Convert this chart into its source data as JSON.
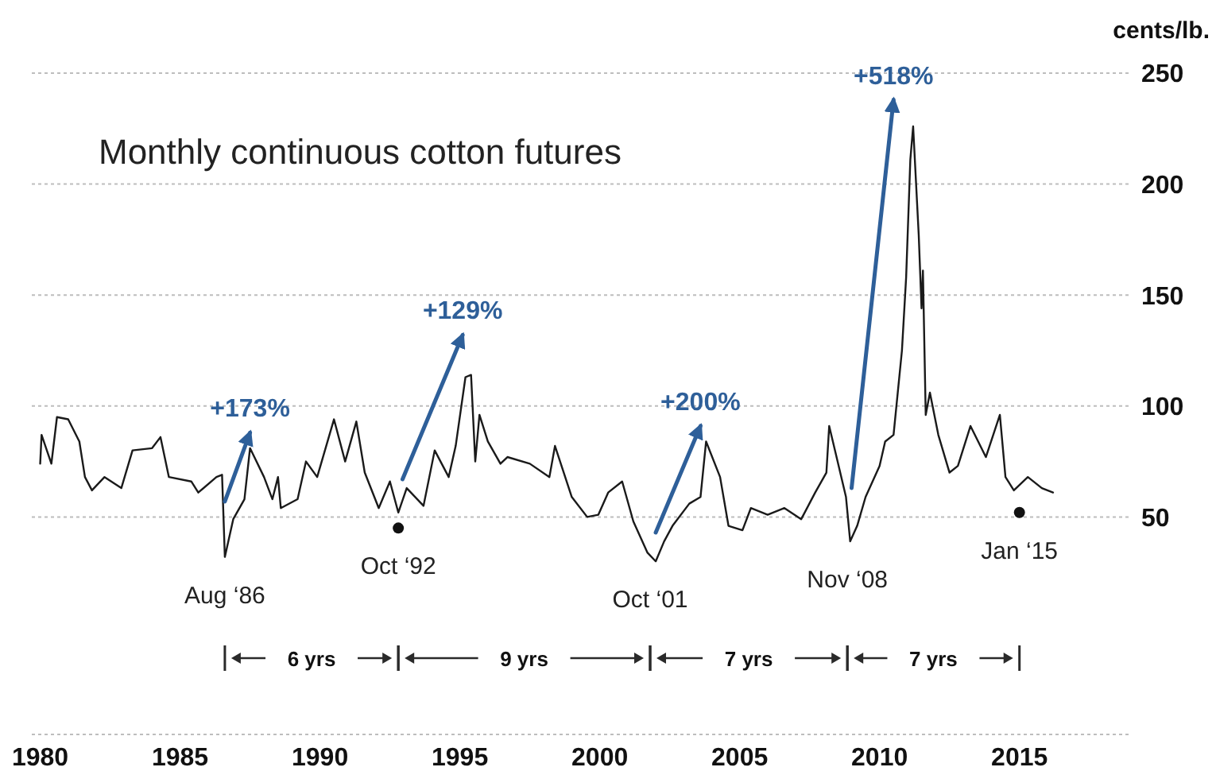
{
  "chart_data": {
    "type": "line",
    "title": "Monthly continuous cotton futures",
    "ylabel": "cents/lb.",
    "xlim": [
      1979.7,
      2018.9
    ],
    "xticks": [
      1980,
      1985,
      1990,
      1995,
      2000,
      2005,
      2010,
      2015
    ],
    "ylim": [
      -48,
      250
    ],
    "yticks": [
      50,
      100,
      150,
      200,
      250
    ],
    "grid": "y",
    "series": [
      {
        "color": "#1a1a1a",
        "x": [
          1980.0,
          1980.05,
          1980.4,
          1980.6,
          1981.0,
          1981.4,
          1981.6,
          1981.85,
          1982.3,
          1982.9,
          1983.3,
          1984.0,
          1984.3,
          1984.6,
          1985.4,
          1985.65,
          1986.3,
          1986.5,
          1986.6,
          1986.9,
          1987.3,
          1987.5,
          1988.0,
          1988.3,
          1988.5,
          1988.6,
          1989.2,
          1989.5,
          1989.9,
          1990.5,
          1990.9,
          1991.3,
          1991.6,
          1992.1,
          1992.5,
          1992.8,
          1993.1,
          1993.7,
          1994.1,
          1994.6,
          1994.85,
          1995.2,
          1995.4,
          1995.55,
          1995.7,
          1996.0,
          1996.45,
          1996.7,
          1997.5,
          1998.2,
          1998.4,
          1999.0,
          1999.55,
          1999.95,
          2000.3,
          2000.8,
          2001.2,
          2001.7,
          2002.0,
          2002.3,
          2002.6,
          2003.2,
          2003.6,
          2003.8,
          2004.3,
          2004.6,
          2005.1,
          2005.4,
          2006.0,
          2006.6,
          2007.2,
          2007.7,
          2008.1,
          2008.2,
          2008.5,
          2008.8,
          2008.95,
          2009.2,
          2009.5,
          2010.0,
          2010.2,
          2010.5,
          2010.8,
          2010.95,
          2011.1,
          2011.2,
          2011.4,
          2011.5,
          2011.55,
          2011.65,
          2011.8,
          2012.1,
          2012.5,
          2012.8,
          2013.25,
          2013.8,
          2014.3,
          2014.5,
          2014.8,
          2015.3,
          2015.8,
          2016.2
        ],
        "values": [
          74,
          87,
          74,
          95,
          94,
          84,
          68,
          62,
          68,
          63,
          80,
          81,
          86,
          68,
          66,
          61,
          68,
          69,
          32,
          49,
          58,
          81,
          68,
          58,
          68,
          54,
          58,
          75,
          68,
          94,
          75,
          93,
          70,
          54,
          66,
          52,
          63,
          55,
          80,
          68,
          82,
          113,
          114,
          75,
          96,
          84,
          74,
          77,
          74,
          68,
          82,
          59,
          50,
          51,
          61,
          66,
          48,
          34,
          30,
          39,
          46,
          56,
          59,
          84,
          68,
          46,
          44,
          54,
          51,
          54,
          49,
          61,
          70,
          91,
          75,
          59,
          39,
          46,
          59,
          73,
          84,
          87,
          125,
          158,
          211,
          226,
          177,
          144,
          161,
          96,
          106,
          87,
          70,
          73,
          91,
          77,
          96,
          68,
          62,
          68,
          63,
          61
        ]
      },
      {
        "name": "+173%",
        "color": "#2e5f99",
        "x": [
          1986.6,
          1987.5
        ],
        "values": [
          57,
          88
        ]
      },
      {
        "name": "+129%",
        "color": "#2e5f99",
        "x": [
          1992.95,
          1995.1
        ],
        "values": [
          67,
          132
        ]
      },
      {
        "name": "+200%",
        "color": "#2e5f99",
        "x": [
          2002.0,
          2003.6
        ],
        "values": [
          43,
          91
        ]
      },
      {
        "name": "+518%",
        "color": "#2e5f99",
        "x": [
          2009.0,
          2010.5
        ],
        "values": [
          63,
          238
        ]
      },
      {
        "type": "scatter",
        "marker": "circle",
        "color": "#111111",
        "x": [
          1992.8,
          2015.0
        ],
        "values": [
          45,
          52
        ]
      }
    ],
    "annotations": [
      {
        "text": "Aug ‘86",
        "x": 1986.6,
        "y": 32
      },
      {
        "text": "Oct ‘92",
        "x": 1992.8,
        "y": 45
      },
      {
        "text": "Oct ‘01",
        "x": 2001.8,
        "y": 30
      },
      {
        "text": "Nov ‘08",
        "x": 2008.85,
        "y": 39
      },
      {
        "text": "Jan ‘15",
        "x": 2015.0,
        "y": 52
      },
      "6 yrs",
      "9 yrs",
      "7 yrs",
      "7 yrs"
    ]
  }
}
